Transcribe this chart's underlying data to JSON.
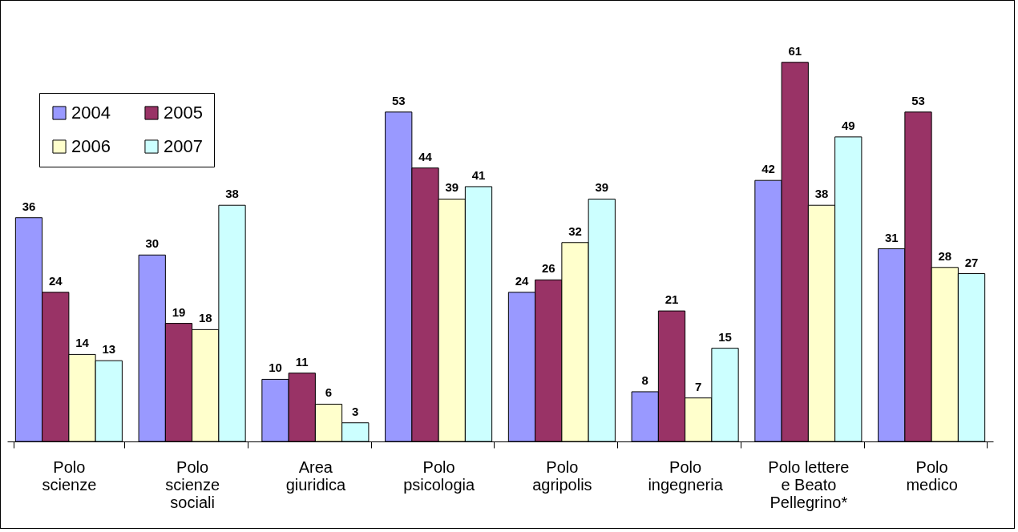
{
  "chart_data": {
    "type": "bar",
    "categories": [
      "Polo scienze",
      "Polo scienze sociali",
      "Area giuridica",
      "Polo psicologia",
      "Polo agripolis",
      "Polo ingegneria",
      "Polo lettere e Beato Pellegrino*",
      "Polo medico"
    ],
    "series": [
      {
        "name": "2004",
        "color": "#9999ff",
        "values": [
          36,
          30,
          10,
          53,
          24,
          8,
          42,
          31
        ]
      },
      {
        "name": "2005",
        "color": "#993366",
        "values": [
          24,
          19,
          11,
          44,
          26,
          21,
          61,
          53
        ]
      },
      {
        "name": "2006",
        "color": "#ffffcc",
        "values": [
          14,
          18,
          6,
          39,
          32,
          7,
          38,
          28
        ]
      },
      {
        "name": "2007",
        "color": "#ccffff",
        "values": [
          13,
          38,
          3,
          41,
          39,
          15,
          49,
          27
        ]
      }
    ],
    "data_labels": true,
    "legend": "top left"
  }
}
